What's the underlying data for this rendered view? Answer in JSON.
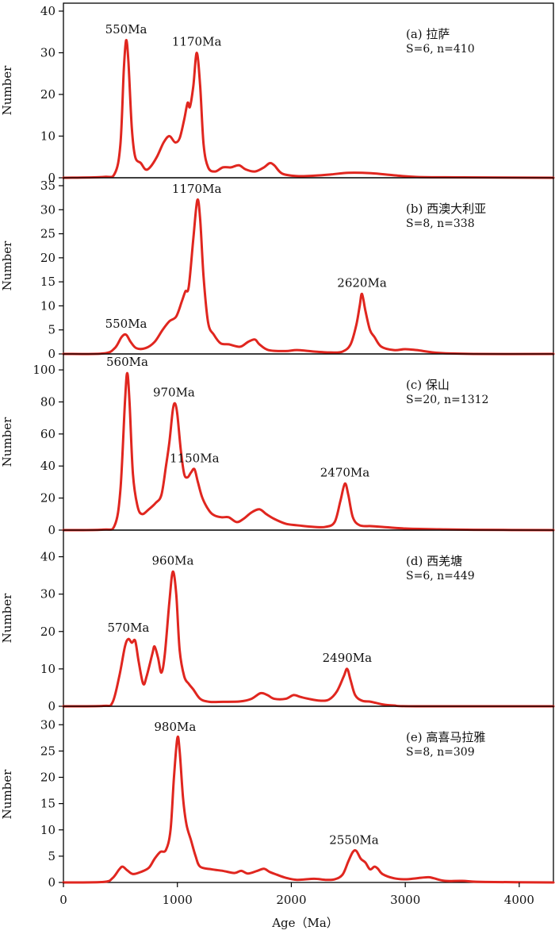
{
  "chart_data": {
    "type": "line",
    "xlabel": "Age（Ma）",
    "xlim": [
      0,
      4300
    ],
    "xticks": [
      0,
      1000,
      2000,
      3000,
      4000
    ],
    "xtick_labels": [
      "0",
      "1000",
      "2000",
      "3000",
      "4000"
    ],
    "line_color": "#e0261f",
    "panels": [
      {
        "id": "a",
        "label": "(a) 拉萨",
        "stats": "S=6, n=410",
        "ylabel": "Number",
        "ylim": [
          0,
          40
        ],
        "yticks": [
          0,
          10,
          20,
          30,
          40
        ],
        "ytick_labels": [
          "0",
          "10",
          "20",
          "30",
          "40"
        ],
        "peaks": [
          {
            "text": "550Ma",
            "x": 550,
            "y": 33
          },
          {
            "text": "1170Ma",
            "x": 1170,
            "y": 30
          }
        ],
        "points": [
          [
            0,
            0
          ],
          [
            350,
            0.2
          ],
          [
            450,
            1
          ],
          [
            500,
            8
          ],
          [
            530,
            26
          ],
          [
            550,
            33
          ],
          [
            570,
            28
          ],
          [
            600,
            12
          ],
          [
            630,
            5
          ],
          [
            680,
            3.5
          ],
          [
            720,
            2
          ],
          [
            760,
            2.5
          ],
          [
            820,
            5
          ],
          [
            880,
            8.5
          ],
          [
            930,
            10
          ],
          [
            980,
            8.5
          ],
          [
            1020,
            9.5
          ],
          [
            1060,
            14
          ],
          [
            1090,
            18
          ],
          [
            1110,
            17
          ],
          [
            1140,
            22
          ],
          [
            1170,
            30
          ],
          [
            1200,
            22
          ],
          [
            1230,
            8
          ],
          [
            1270,
            2.5
          ],
          [
            1330,
            1.5
          ],
          [
            1400,
            2.5
          ],
          [
            1470,
            2.5
          ],
          [
            1540,
            3
          ],
          [
            1600,
            2
          ],
          [
            1680,
            1.5
          ],
          [
            1760,
            2.5
          ],
          [
            1810,
            3.5
          ],
          [
            1850,
            3
          ],
          [
            1920,
            1
          ],
          [
            2050,
            0.4
          ],
          [
            2200,
            0.5
          ],
          [
            2350,
            0.8
          ],
          [
            2500,
            1.2
          ],
          [
            2700,
            1.1
          ],
          [
            2900,
            0.6
          ],
          [
            3100,
            0.2
          ],
          [
            3500,
            0.1
          ],
          [
            4300,
            0
          ]
        ]
      },
      {
        "id": "b",
        "label": "(b) 西澳大利亚",
        "stats": "S=8, n=338",
        "ylabel": "Number",
        "ylim": [
          0,
          35
        ],
        "yticks": [
          0,
          5,
          10,
          15,
          20,
          25,
          30,
          35
        ],
        "ytick_labels": [
          "0",
          "5",
          "10",
          "15",
          "20",
          "25",
          "30",
          "35"
        ],
        "peaks": [
          {
            "text": "550Ma",
            "x": 550,
            "y": 4
          },
          {
            "text": "1170Ma",
            "x": 1170,
            "y": 32
          },
          {
            "text": "2620Ma",
            "x": 2620,
            "y": 12.5
          }
        ],
        "points": [
          [
            0,
            0
          ],
          [
            350,
            0.1
          ],
          [
            450,
            1.2
          ],
          [
            510,
            3.5
          ],
          [
            550,
            4
          ],
          [
            590,
            2.5
          ],
          [
            640,
            1.2
          ],
          [
            720,
            1.2
          ],
          [
            800,
            2.5
          ],
          [
            870,
            5
          ],
          [
            930,
            6.8
          ],
          [
            990,
            7.8
          ],
          [
            1040,
            11
          ],
          [
            1070,
            13
          ],
          [
            1100,
            14
          ],
          [
            1140,
            24
          ],
          [
            1175,
            32
          ],
          [
            1200,
            28
          ],
          [
            1230,
            16
          ],
          [
            1270,
            6.5
          ],
          [
            1320,
            4
          ],
          [
            1380,
            2.2
          ],
          [
            1450,
            2
          ],
          [
            1550,
            1.5
          ],
          [
            1620,
            2.5
          ],
          [
            1680,
            3
          ],
          [
            1720,
            2
          ],
          [
            1800,
            0.8
          ],
          [
            1950,
            0.6
          ],
          [
            2050,
            0.8
          ],
          [
            2200,
            0.5
          ],
          [
            2350,
            0.3
          ],
          [
            2450,
            0.5
          ],
          [
            2520,
            2
          ],
          [
            2570,
            6
          ],
          [
            2600,
            10
          ],
          [
            2620,
            12.5
          ],
          [
            2650,
            9
          ],
          [
            2690,
            5
          ],
          [
            2730,
            3.5
          ],
          [
            2790,
            1.5
          ],
          [
            2900,
            0.8
          ],
          [
            3000,
            1
          ],
          [
            3100,
            0.8
          ],
          [
            3300,
            0.2
          ],
          [
            3600,
            0
          ],
          [
            4300,
            0
          ]
        ]
      },
      {
        "id": "c",
        "label": "(c) 保山",
        "stats": "S=20, n=1312",
        "ylabel": "Number",
        "ylim": [
          0,
          105
        ],
        "yticks": [
          0,
          20,
          40,
          60,
          80,
          100
        ],
        "ytick_labels": [
          "0",
          "20",
          "40",
          "60",
          "80",
          "100"
        ],
        "peaks": [
          {
            "text": "560Ma",
            "x": 560,
            "y": 98
          },
          {
            "text": "970Ma",
            "x": 970,
            "y": 79
          },
          {
            "text": "1150Ma",
            "x": 1150,
            "y": 38
          },
          {
            "text": "2470Ma",
            "x": 2470,
            "y": 29
          }
        ],
        "points": [
          [
            0,
            0
          ],
          [
            350,
            0.3
          ],
          [
            450,
            3
          ],
          [
            500,
            25
          ],
          [
            540,
            80
          ],
          [
            560,
            98
          ],
          [
            580,
            80
          ],
          [
            610,
            35
          ],
          [
            650,
            15
          ],
          [
            690,
            10
          ],
          [
            750,
            13
          ],
          [
            810,
            17
          ],
          [
            860,
            22
          ],
          [
            900,
            40
          ],
          [
            930,
            55
          ],
          [
            960,
            75
          ],
          [
            980,
            79
          ],
          [
            1000,
            72
          ],
          [
            1030,
            50
          ],
          [
            1060,
            35
          ],
          [
            1090,
            33
          ],
          [
            1120,
            36
          ],
          [
            1150,
            38
          ],
          [
            1180,
            30
          ],
          [
            1220,
            20
          ],
          [
            1280,
            12
          ],
          [
            1330,
            9
          ],
          [
            1390,
            8
          ],
          [
            1450,
            8
          ],
          [
            1520,
            5
          ],
          [
            1580,
            7
          ],
          [
            1650,
            11
          ],
          [
            1720,
            13
          ],
          [
            1780,
            10
          ],
          [
            1850,
            7
          ],
          [
            1950,
            4
          ],
          [
            2050,
            3
          ],
          [
            2200,
            2
          ],
          [
            2300,
            2
          ],
          [
            2380,
            5
          ],
          [
            2430,
            18
          ],
          [
            2470,
            29
          ],
          [
            2500,
            22
          ],
          [
            2540,
            8
          ],
          [
            2600,
            3
          ],
          [
            2700,
            2.5
          ],
          [
            2800,
            2
          ],
          [
            3000,
            1
          ],
          [
            3300,
            0.5
          ],
          [
            3600,
            0.2
          ],
          [
            4300,
            0
          ]
        ]
      },
      {
        "id": "d",
        "label": "(d) 西羌塘",
        "stats": "S=6, n=449",
        "ylabel": "Number",
        "ylim": [
          0,
          45
        ],
        "yticks": [
          0,
          10,
          20,
          30,
          40
        ],
        "ytick_labels": [
          "0",
          "10",
          "20",
          "30",
          "40"
        ],
        "peaks": [
          {
            "text": "570Ma",
            "x": 570,
            "y": 18
          },
          {
            "text": "960Ma",
            "x": 960,
            "y": 36
          },
          {
            "text": "2490Ma",
            "x": 2490,
            "y": 10
          }
        ],
        "points": [
          [
            0,
            0
          ],
          [
            350,
            0.1
          ],
          [
            430,
            1
          ],
          [
            490,
            8
          ],
          [
            540,
            16
          ],
          [
            570,
            18
          ],
          [
            600,
            17
          ],
          [
            630,
            17.5
          ],
          [
            660,
            12
          ],
          [
            700,
            6
          ],
          [
            730,
            8
          ],
          [
            780,
            14
          ],
          [
            800,
            16
          ],
          [
            830,
            13
          ],
          [
            860,
            9
          ],
          [
            890,
            14
          ],
          [
            930,
            28
          ],
          [
            960,
            36
          ],
          [
            990,
            30
          ],
          [
            1020,
            15
          ],
          [
            1060,
            8
          ],
          [
            1100,
            6
          ],
          [
            1140,
            4.5
          ],
          [
            1200,
            2
          ],
          [
            1280,
            1.2
          ],
          [
            1400,
            1.2
          ],
          [
            1550,
            1.3
          ],
          [
            1650,
            2
          ],
          [
            1730,
            3.5
          ],
          [
            1790,
            3
          ],
          [
            1850,
            2
          ],
          [
            1950,
            2
          ],
          [
            2020,
            3
          ],
          [
            2080,
            2.5
          ],
          [
            2150,
            2
          ],
          [
            2250,
            1.5
          ],
          [
            2330,
            1.8
          ],
          [
            2400,
            4
          ],
          [
            2460,
            8
          ],
          [
            2490,
            10
          ],
          [
            2520,
            7
          ],
          [
            2560,
            3
          ],
          [
            2620,
            1.5
          ],
          [
            2700,
            1.2
          ],
          [
            2800,
            0.5
          ],
          [
            2900,
            0.2
          ],
          [
            3100,
            0
          ],
          [
            4300,
            0
          ]
        ]
      },
      {
        "id": "e",
        "label": "(e) 高喜马拉雅",
        "stats": "S=8, n=309",
        "ylabel": "Number",
        "ylim": [
          0,
          32
        ],
        "yticks": [
          0,
          5,
          10,
          15,
          20,
          25,
          30
        ],
        "ytick_labels": [
          "0",
          "5",
          "10",
          "15",
          "20",
          "25",
          "30"
        ],
        "peaks": [
          {
            "text": "980Ma",
            "x": 980,
            "y": 27.5
          },
          {
            "text": "2550Ma",
            "x": 2550,
            "y": 6
          }
        ],
        "points": [
          [
            0,
            0
          ],
          [
            350,
            0.1
          ],
          [
            430,
            0.8
          ],
          [
            490,
            2.5
          ],
          [
            520,
            3
          ],
          [
            560,
            2.3
          ],
          [
            610,
            1.6
          ],
          [
            680,
            2
          ],
          [
            750,
            2.8
          ],
          [
            800,
            4.5
          ],
          [
            850,
            5.8
          ],
          [
            900,
            6.2
          ],
          [
            940,
            10
          ],
          [
            970,
            20
          ],
          [
            1000,
            27.5
          ],
          [
            1020,
            25
          ],
          [
            1050,
            16
          ],
          [
            1080,
            11
          ],
          [
            1120,
            8
          ],
          [
            1160,
            5
          ],
          [
            1200,
            3
          ],
          [
            1300,
            2.5
          ],
          [
            1400,
            2.2
          ],
          [
            1500,
            1.8
          ],
          [
            1560,
            2.2
          ],
          [
            1620,
            1.7
          ],
          [
            1700,
            2.2
          ],
          [
            1760,
            2.6
          ],
          [
            1810,
            2
          ],
          [
            1870,
            1.5
          ],
          [
            1950,
            0.9
          ],
          [
            2050,
            0.5
          ],
          [
            2200,
            0.7
          ],
          [
            2300,
            0.5
          ],
          [
            2380,
            0.6
          ],
          [
            2450,
            1.5
          ],
          [
            2500,
            4
          ],
          [
            2540,
            5.8
          ],
          [
            2570,
            6
          ],
          [
            2610,
            4.5
          ],
          [
            2650,
            3.8
          ],
          [
            2690,
            2.5
          ],
          [
            2730,
            3
          ],
          [
            2760,
            2.6
          ],
          [
            2800,
            1.6
          ],
          [
            2900,
            0.8
          ],
          [
            3000,
            0.6
          ],
          [
            3100,
            0.8
          ],
          [
            3200,
            1
          ],
          [
            3250,
            0.8
          ],
          [
            3350,
            0.3
          ],
          [
            3500,
            0.3
          ],
          [
            3700,
            0.1
          ],
          [
            4300,
            0
          ]
        ]
      }
    ]
  }
}
